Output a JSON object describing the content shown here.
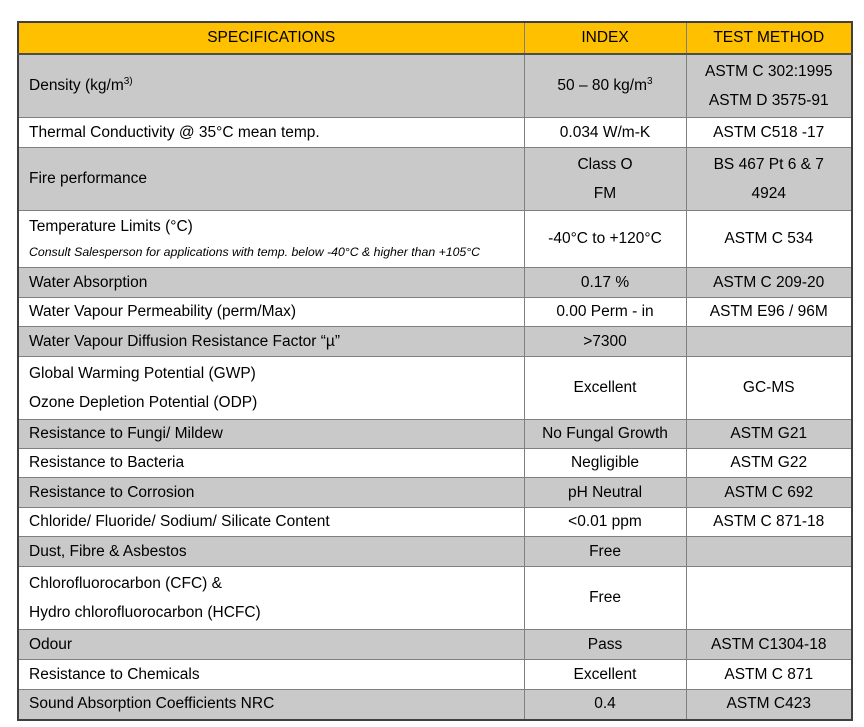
{
  "colors": {
    "header_bg": "#FFC000",
    "row_gray": "#C9C9C9",
    "row_white": "#FFFFFF",
    "border_inner": "#7F7F7F",
    "border_outer": "#3F3F3F",
    "text": "#000000"
  },
  "header": {
    "specifications": "SPECIFICATIONS",
    "index": "INDEX",
    "test_method": "TEST METHOD"
  },
  "rows": [
    {
      "spec_main": "Density (kg/m",
      "spec_sup": "3)",
      "index_main": "50 – 80 kg/m",
      "index_sup": "3",
      "method_lines": [
        "ASTM C 302:1995",
        "ASTM D 3575-91"
      ]
    },
    {
      "spec": "Thermal Conductivity @ 35°C mean temp.",
      "index": "0.034 W/m-K",
      "method": "ASTM C518 -17"
    },
    {
      "spec": "Fire performance",
      "index_lines": [
        "Class O",
        "FM"
      ],
      "method_lines": [
        "BS 467 Pt 6 & 7",
        "4924"
      ]
    },
    {
      "spec": "Temperature Limits (°C)",
      "spec_note": "Consult Salesperson for applications with temp. below -40°C & higher than +105°C",
      "index": "-40°C to +120°C",
      "method": "ASTM C 534"
    },
    {
      "spec": "Water Absorption",
      "index": "0.17 %",
      "method": "ASTM C 209-20"
    },
    {
      "spec": "Water Vapour Permeability (perm/Max)",
      "index": "0.00 Perm - in",
      "method": "ASTM E96 / 96M"
    },
    {
      "spec": "Water Vapour Diffusion Resistance Factor “µ”",
      "index": ">7300",
      "method": ""
    },
    {
      "spec_lines": [
        "Global Warming Potential (GWP)",
        "Ozone Depletion Potential (ODP)"
      ],
      "index": "Excellent",
      "method": "GC-MS"
    },
    {
      "spec": "Resistance to Fungi/ Mildew",
      "index": "No Fungal Growth",
      "method": "ASTM G21"
    },
    {
      "spec": "Resistance to Bacteria",
      "index": "Negligible",
      "method": "ASTM G22"
    },
    {
      "spec": "Resistance to Corrosion",
      "index": "pH Neutral",
      "method": "ASTM C 692"
    },
    {
      "spec": "Chloride/ Fluoride/ Sodium/ Silicate Content",
      "index": "<0.01 ppm",
      "method": "ASTM C 871-18"
    },
    {
      "spec": "Dust, Fibre & Asbestos",
      "index": "Free",
      "method": ""
    },
    {
      "spec_lines": [
        "Chlorofluorocarbon (CFC) &",
        "Hydro chlorofluorocarbon (HCFC)"
      ],
      "index": "Free",
      "method": ""
    },
    {
      "spec": "Odour",
      "index": "Pass",
      "method": "ASTM C1304-18"
    },
    {
      "spec": "Resistance to Chemicals",
      "index": "Excellent",
      "method": "ASTM C 871"
    },
    {
      "spec": "Sound Absorption Coefficients NRC",
      "index": "0.4",
      "method": "ASTM C423"
    }
  ]
}
